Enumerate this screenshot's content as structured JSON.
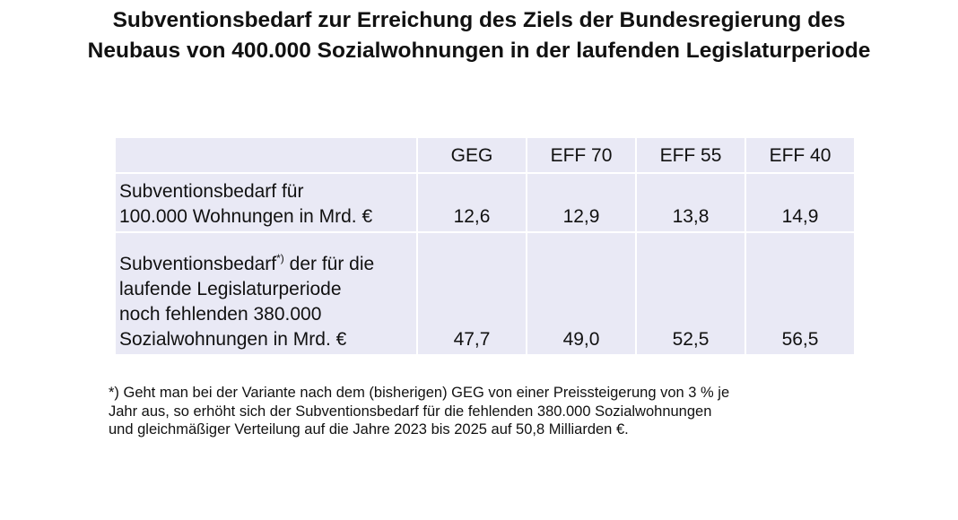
{
  "title": {
    "line1": "Subventionsbedarf zur Erreichung des Ziels der Bundesregierung des",
    "line2": "Neubaus von 400.000 Sozialwohnungen in der laufenden Legislaturperiode"
  },
  "table": {
    "columns": [
      "GEG",
      "EFF 70",
      "EFF 55",
      "EFF 40"
    ],
    "rows": [
      {
        "label_lines": [
          "Subventionsbedarf für",
          "100.000 Wohnungen in Mrd. €"
        ],
        "values": [
          "12,6",
          "12,9",
          "13,8",
          "14,9"
        ]
      },
      {
        "label_first": "Subventionsbedarf",
        "label_sup": "*)",
        "label_first_rest": " der für die",
        "label_lines": [
          "laufende Legislaturperiode",
          "noch fehlenden 380.000",
          "Sozialwohnungen in Mrd. €"
        ],
        "values": [
          "47,7",
          "49,0",
          "52,5",
          "56,5"
        ]
      }
    ]
  },
  "footnote": {
    "line1": "*) Geht man bei der Variante nach dem (bisherigen) GEG von einer Preissteigerung von 3 % je",
    "line2": "Jahr aus, so erhöht sich der Subventionsbedarf für die fehlenden 380.000 Sozialwohnungen",
    "line3": "und gleichmäßiger Verteilung auf die Jahre 2023 bis 2025 auf 50,8 Milliarden €."
  }
}
